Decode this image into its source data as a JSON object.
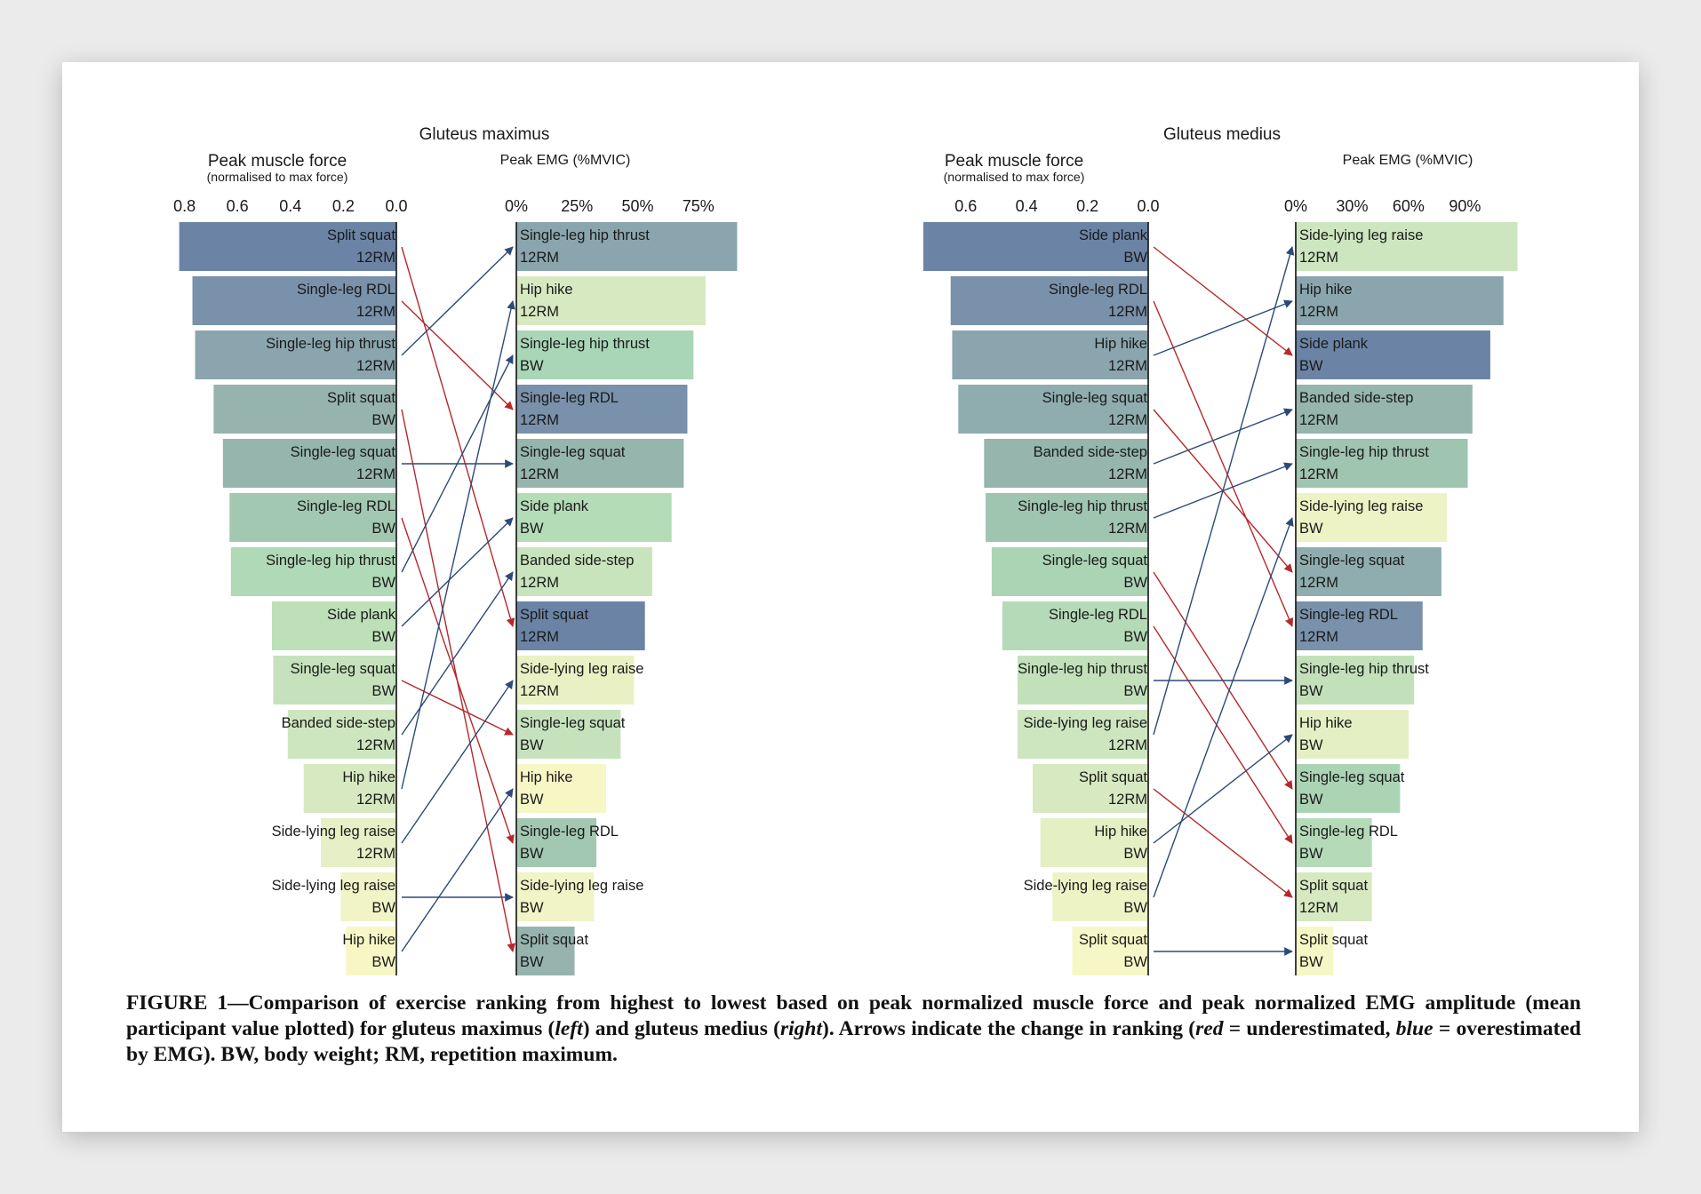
{
  "caption": {
    "parts": [
      {
        "t": "FIGURE 1—Comparison of exercise ranking from highest to lowest based on peak normalized muscle force and peak normalized EMG amplitude (mean participant value plotted) for gluteus maximus ("
      },
      {
        "t": "left",
        "i": true
      },
      {
        "t": ") and gluteus medius ("
      },
      {
        "t": "right",
        "i": true
      },
      {
        "t": "). Arrows indicate the change in ranking ("
      },
      {
        "t": "red",
        "i": true
      },
      {
        "t": " = underestimated, "
      },
      {
        "t": "blue",
        "i": true
      },
      {
        "t": " = overestimated by EMG). BW, body weight; RM, repetition maximum."
      }
    ]
  },
  "colors": {
    "arrow_underestimated": "#b5282c",
    "arrow_overestimated": "#2c4a78",
    "exercise_palette": {
      "Split squat": "#6b84a5",
      "Single-leg RDL": "#7991aa",
      "Single-leg hip thrust": "#8aa5ad",
      "Single-leg squat": "#95b5ad",
      "Side plank": "#a9d1b5",
      "Banded side-step": "#c0e0b8",
      "Hip hike": "#d7e9c1",
      "Side-lying leg raise": "#f4f6c6"
    }
  },
  "chart_data": [
    {
      "type": "bar",
      "panel": "left",
      "title": "Gluteus maximus",
      "force": {
        "xlabel": "Peak muscle force",
        "xlabel_sub": "(normalised to max force)",
        "ticks": [
          "0.8",
          "0.6",
          "0.4",
          "0.2",
          "0.0"
        ],
        "tick_values": [
          0.8,
          0.6,
          0.4,
          0.2,
          0.0
        ],
        "xlim": [
          0,
          0.86
        ],
        "items": [
          {
            "ex": "Split squat",
            "load": "12RM",
            "value": 0.82,
            "color": "#6b84a5"
          },
          {
            "ex": "Single-leg RDL",
            "load": "12RM",
            "value": 0.77,
            "color": "#7991aa"
          },
          {
            "ex": "Single-leg hip thrust",
            "load": "12RM",
            "value": 0.76,
            "color": "#8aa5ad"
          },
          {
            "ex": "Split squat",
            "load": "BW",
            "value": 0.69,
            "color": "#96b4ad"
          },
          {
            "ex": "Single-leg squat",
            "load": "12RM",
            "value": 0.655,
            "color": "#95b5ad"
          },
          {
            "ex": "Single-leg RDL",
            "load": "BW",
            "value": 0.63,
            "color": "#a2c8b1"
          },
          {
            "ex": "Single-leg hip thrust",
            "load": "BW",
            "value": 0.625,
            "color": "#b0d9b7"
          },
          {
            "ex": "Side plank",
            "load": "BW",
            "value": 0.47,
            "color": "#bde0b9"
          },
          {
            "ex": "Single-leg squat",
            "load": "BW",
            "value": 0.465,
            "color": "#c5e2bd"
          },
          {
            "ex": "Banded side-step",
            "load": "12RM",
            "value": 0.41,
            "color": "#cee6c0"
          },
          {
            "ex": "Hip hike",
            "load": "12RM",
            "value": 0.35,
            "color": "#d7e9c1"
          },
          {
            "ex": "Side-lying leg raise",
            "load": "12RM",
            "value": 0.285,
            "color": "#e6efc5"
          },
          {
            "ex": "Side-lying leg raise",
            "load": "BW",
            "value": 0.21,
            "color": "#f0f4c6"
          },
          {
            "ex": "Hip hike",
            "load": "BW",
            "value": 0.19,
            "color": "#f7f7c6"
          }
        ]
      },
      "emg": {
        "xlabel": "Peak EMG (%MVIC)",
        "ticks": [
          "0%",
          "25%",
          "50%",
          "75%"
        ],
        "tick_values": [
          0,
          25,
          50,
          75
        ],
        "xlim": [
          0,
          91
        ],
        "items": [
          {
            "ex": "Single-leg hip thrust",
            "load": "12RM",
            "value": 91,
            "color": "#8aa5ad"
          },
          {
            "ex": "Hip hike",
            "load": "12RM",
            "value": 78,
            "color": "#d7e9c1"
          },
          {
            "ex": "Single-leg hip thrust",
            "load": "BW",
            "value": 73,
            "color": "#a9d6b6"
          },
          {
            "ex": "Single-leg RDL",
            "load": "12RM",
            "value": 70.5,
            "color": "#7991aa"
          },
          {
            "ex": "Single-leg squat",
            "load": "12RM",
            "value": 69,
            "color": "#95b5ad"
          },
          {
            "ex": "Side plank",
            "load": "BW",
            "value": 64,
            "color": "#b4dcb7"
          },
          {
            "ex": "Banded side-step",
            "load": "12RM",
            "value": 56,
            "color": "#c7e4bc"
          },
          {
            "ex": "Split squat",
            "load": "12RM",
            "value": 53,
            "color": "#6b84a5"
          },
          {
            "ex": "Side-lying leg raise",
            "load": "12RM",
            "value": 48.5,
            "color": "#e9f1c4"
          },
          {
            "ex": "Single-leg squat",
            "load": "BW",
            "value": 43,
            "color": "#c5e2bd"
          },
          {
            "ex": "Hip hike",
            "load": "BW",
            "value": 37,
            "color": "#f7f7c6"
          },
          {
            "ex": "Single-leg RDL",
            "load": "BW",
            "value": 33,
            "color": "#a2c8b1"
          },
          {
            "ex": "Side-lying leg raise",
            "load": "BW",
            "value": 32,
            "color": "#f0f4c6"
          },
          {
            "ex": "Split squat",
            "load": "BW",
            "value": 24,
            "color": "#96b4ad"
          }
        ]
      },
      "arrows": [
        {
          "from": 0,
          "to": 7,
          "dir": "under"
        },
        {
          "from": 1,
          "to": 3,
          "dir": "under"
        },
        {
          "from": 2,
          "to": 0,
          "dir": "over"
        },
        {
          "from": 3,
          "to": 13,
          "dir": "under"
        },
        {
          "from": 4,
          "to": 4,
          "dir": "over"
        },
        {
          "from": 5,
          "to": 11,
          "dir": "under"
        },
        {
          "from": 6,
          "to": 2,
          "dir": "over"
        },
        {
          "from": 7,
          "to": 5,
          "dir": "over"
        },
        {
          "from": 8,
          "to": 9,
          "dir": "under"
        },
        {
          "from": 9,
          "to": 6,
          "dir": "over"
        },
        {
          "from": 10,
          "to": 1,
          "dir": "over"
        },
        {
          "from": 11,
          "to": 8,
          "dir": "over"
        },
        {
          "from": 12,
          "to": 12,
          "dir": "over"
        },
        {
          "from": 13,
          "to": 10,
          "dir": "over"
        }
      ]
    },
    {
      "type": "bar",
      "panel": "right",
      "title": "Gluteus medius",
      "force": {
        "xlabel": "Peak muscle force",
        "xlabel_sub": "(normalised to max force)",
        "ticks": [
          "0.6",
          "0.4",
          "0.2",
          "0.0"
        ],
        "tick_values": [
          0.6,
          0.4,
          0.2,
          0.0
        ],
        "xlim": [
          0,
          0.7
        ],
        "items": [
          {
            "ex": "Side plank",
            "load": "BW",
            "value": 0.74,
            "color": "#6b84a5"
          },
          {
            "ex": "Single-leg RDL",
            "load": "12RM",
            "value": 0.65,
            "color": "#7991aa"
          },
          {
            "ex": "Hip hike",
            "load": "12RM",
            "value": 0.645,
            "color": "#8aa5ad"
          },
          {
            "ex": "Single-leg squat",
            "load": "12RM",
            "value": 0.625,
            "color": "#8fadae"
          },
          {
            "ex": "Banded side-step",
            "load": "12RM",
            "value": 0.54,
            "color": "#95b5ad"
          },
          {
            "ex": "Single-leg hip thrust",
            "load": "12RM",
            "value": 0.535,
            "color": "#9fc4b0"
          },
          {
            "ex": "Single-leg squat",
            "load": "BW",
            "value": 0.515,
            "color": "#abd4b5"
          },
          {
            "ex": "Single-leg RDL",
            "load": "BW",
            "value": 0.48,
            "color": "#b5dab8"
          },
          {
            "ex": "Single-leg hip thrust",
            "load": "BW",
            "value": 0.43,
            "color": "#c2e1bb"
          },
          {
            "ex": "Side-lying leg raise",
            "load": "12RM",
            "value": 0.43,
            "color": "#cde6bf"
          },
          {
            "ex": "Split squat",
            "load": "12RM",
            "value": 0.38,
            "color": "#d7e9c1"
          },
          {
            "ex": "Hip hike",
            "load": "BW",
            "value": 0.355,
            "color": "#e4efc4"
          },
          {
            "ex": "Side-lying leg raise",
            "load": "BW",
            "value": 0.315,
            "color": "#eef3c6"
          },
          {
            "ex": "Split squat",
            "load": "BW",
            "value": 0.25,
            "color": "#f6f7c6"
          }
        ]
      },
      "emg": {
        "xlabel": "Peak EMG (%MVIC)",
        "ticks": [
          "0%",
          "30%",
          "60%",
          "90%"
        ],
        "tick_values": [
          0,
          30,
          60,
          90
        ],
        "xlim": [
          0,
          118
        ],
        "items": [
          {
            "ex": "Side-lying leg raise",
            "load": "12RM",
            "value": 118,
            "color": "#cde6bf"
          },
          {
            "ex": "Hip hike",
            "load": "12RM",
            "value": 110.5,
            "color": "#8aa5ad"
          },
          {
            "ex": "Side plank",
            "load": "BW",
            "value": 103.5,
            "color": "#6b84a5"
          },
          {
            "ex": "Banded side-step",
            "load": "12RM",
            "value": 94,
            "color": "#95b5ad"
          },
          {
            "ex": "Single-leg hip thrust",
            "load": "12RM",
            "value": 91.5,
            "color": "#9fc4b0"
          },
          {
            "ex": "Side-lying leg raise",
            "load": "BW",
            "value": 80.5,
            "color": "#eef3c6"
          },
          {
            "ex": "Single-leg squat",
            "load": "12RM",
            "value": 77.5,
            "color": "#8fadae"
          },
          {
            "ex": "Single-leg RDL",
            "load": "12RM",
            "value": 67.5,
            "color": "#7991aa"
          },
          {
            "ex": "Single-leg hip thrust",
            "load": "BW",
            "value": 63,
            "color": "#c2e1bb"
          },
          {
            "ex": "Hip hike",
            "load": "BW",
            "value": 60,
            "color": "#e4efc4"
          },
          {
            "ex": "Single-leg squat",
            "load": "BW",
            "value": 55.5,
            "color": "#abd4b5"
          },
          {
            "ex": "Single-leg RDL",
            "load": "BW",
            "value": 40.5,
            "color": "#b5dab8"
          },
          {
            "ex": "Split squat",
            "load": "12RM",
            "value": 40.5,
            "color": "#d7e9c1"
          },
          {
            "ex": "Split squat",
            "load": "BW",
            "value": 20,
            "color": "#f6f7c6"
          }
        ]
      },
      "arrows": [
        {
          "from": 0,
          "to": 2,
          "dir": "under"
        },
        {
          "from": 1,
          "to": 7,
          "dir": "under"
        },
        {
          "from": 2,
          "to": 1,
          "dir": "over"
        },
        {
          "from": 3,
          "to": 6,
          "dir": "under"
        },
        {
          "from": 4,
          "to": 3,
          "dir": "over"
        },
        {
          "from": 5,
          "to": 4,
          "dir": "over"
        },
        {
          "from": 6,
          "to": 10,
          "dir": "under"
        },
        {
          "from": 7,
          "to": 11,
          "dir": "under"
        },
        {
          "from": 8,
          "to": 8,
          "dir": "over"
        },
        {
          "from": 9,
          "to": 0,
          "dir": "over"
        },
        {
          "from": 10,
          "to": 12,
          "dir": "under"
        },
        {
          "from": 11,
          "to": 9,
          "dir": "over"
        },
        {
          "from": 12,
          "to": 5,
          "dir": "over"
        },
        {
          "from": 13,
          "to": 13,
          "dir": "over"
        }
      ]
    }
  ]
}
